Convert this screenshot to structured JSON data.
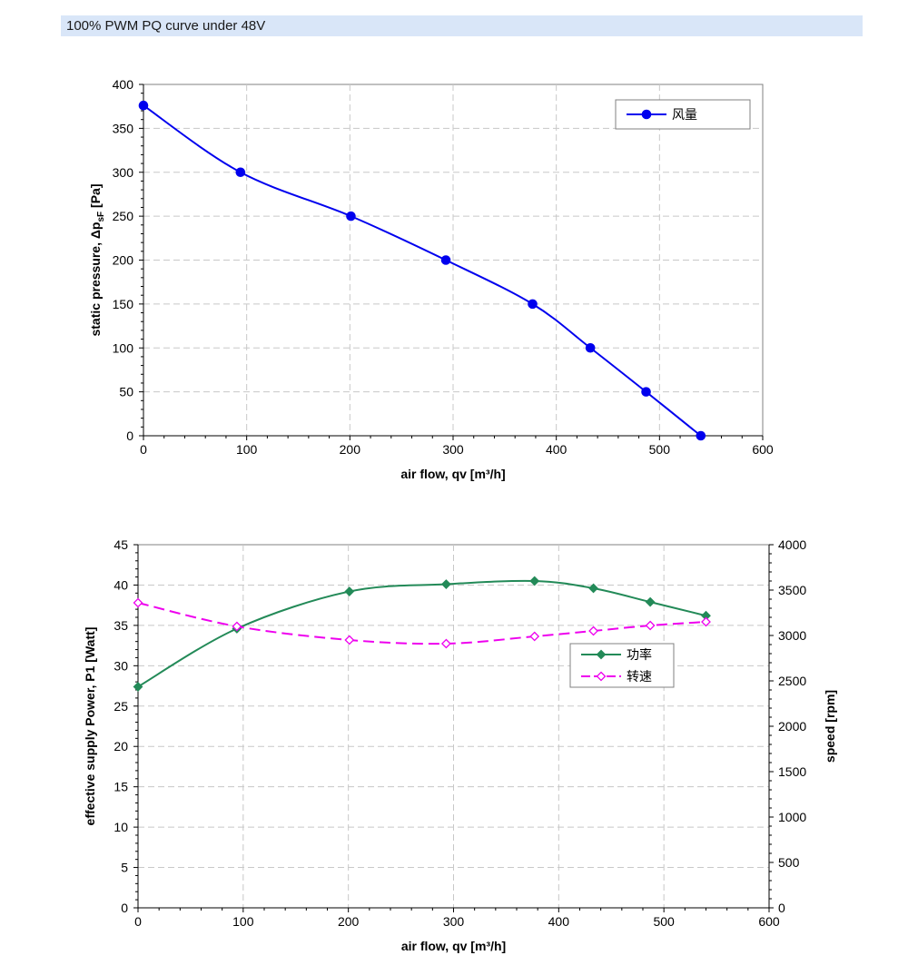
{
  "header": {
    "title": "100% PWM PQ curve under 48V"
  },
  "chart_data": [
    {
      "type": "line",
      "xlabel": "air flow, qv [m³/h]",
      "ylabel": "static pressure, Δp",
      "ylabel_sub": "sF",
      "ylabel_suffix": " [Pa]",
      "xlim": [
        0,
        600
      ],
      "ylim": [
        0,
        400
      ],
      "xticks": [
        0,
        100,
        200,
        300,
        400,
        500,
        600
      ],
      "yticks": [
        0,
        50,
        100,
        150,
        200,
        250,
        300,
        350,
        400
      ],
      "grid": true,
      "legend_position": "top-right",
      "series": [
        {
          "name": "风量",
          "color": "#0000ee",
          "marker": "circle",
          "x": [
            0,
            94,
            201,
            293,
            377,
            433,
            487,
            540
          ],
          "y": [
            376,
            300,
            250,
            200,
            150,
            100,
            50,
            0
          ]
        }
      ]
    },
    {
      "type": "line",
      "xlabel": "air flow, qv [m³/h]",
      "ylabel": "effective supply Power, P1 [Watt]",
      "ylabel_right": "speed [rpm]",
      "xlim": [
        0,
        600
      ],
      "ylim": [
        0,
        45
      ],
      "ylim_right": [
        0,
        4000
      ],
      "xticks": [
        0,
        100,
        200,
        300,
        400,
        500,
        600
      ],
      "yticks": [
        0,
        5,
        10,
        15,
        20,
        25,
        30,
        35,
        40,
        45
      ],
      "yticks_right": [
        0,
        500,
        1000,
        1500,
        2000,
        2500,
        3000,
        3500,
        4000
      ],
      "grid": true,
      "legend_position": "center-right",
      "series": [
        {
          "name": "功率",
          "color": "#238a58",
          "marker": "diamond-filled",
          "axis": "left",
          "x": [
            0,
            94,
            201,
            293,
            377,
            433,
            487,
            540
          ],
          "y": [
            27.4,
            34.6,
            39.2,
            40.1,
            40.5,
            39.6,
            37.9,
            36.2
          ]
        },
        {
          "name": "转速",
          "color": "#ee00ee",
          "marker": "diamond-open",
          "dash": true,
          "axis": "right",
          "x": [
            0,
            94,
            201,
            293,
            377,
            433,
            487,
            540
          ],
          "y": [
            3360,
            3100,
            2950,
            2910,
            2990,
            3050,
            3110,
            3150
          ]
        }
      ]
    }
  ]
}
